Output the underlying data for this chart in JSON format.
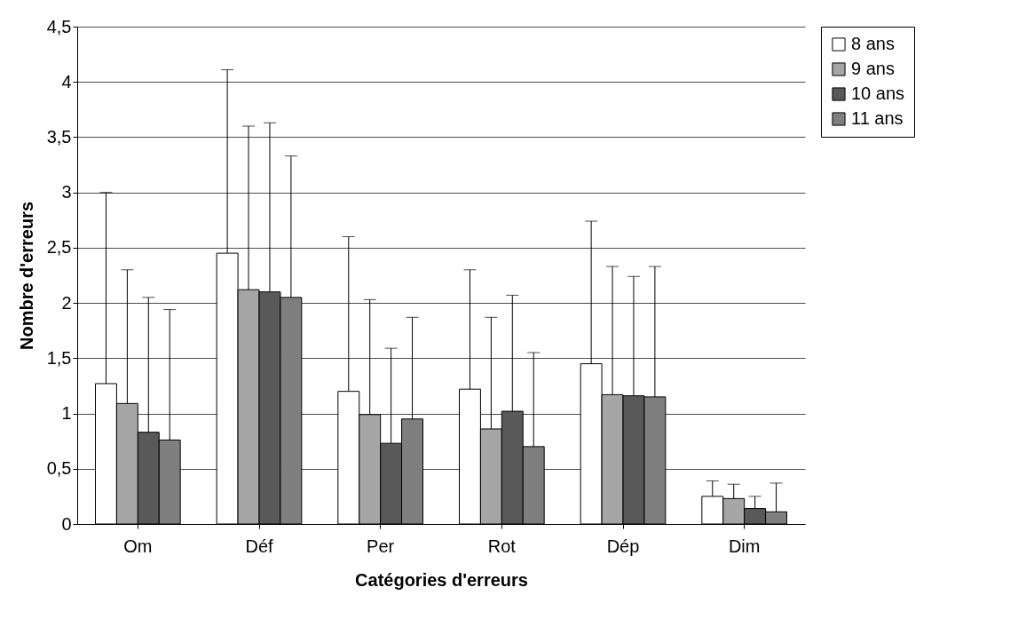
{
  "chart_data": {
    "type": "bar",
    "xlabel": "Catégories d'erreurs",
    "ylabel": "Nombre d'erreurs",
    "categories": [
      "Om",
      "Déf",
      "Per",
      "Rot",
      "Dép",
      "Dim"
    ],
    "series": [
      {
        "name": "8 ans",
        "color": "#ffffff",
        "values": [
          1.27,
          2.45,
          1.2,
          1.22,
          1.45,
          0.25
        ],
        "errors": [
          [
            1.27,
            3.0
          ],
          [
            2.45,
            4.11
          ],
          [
            1.2,
            2.6
          ],
          [
            1.22,
            2.3
          ],
          [
            1.45,
            2.74
          ],
          [
            0.25,
            0.39
          ]
        ]
      },
      {
        "name": "9 ans",
        "color": "#a6a6a6",
        "values": [
          1.09,
          2.12,
          0.99,
          0.86,
          1.17,
          0.23
        ],
        "errors": [
          [
            1.09,
            2.3
          ],
          [
            2.12,
            3.6
          ],
          [
            0.99,
            2.03
          ],
          [
            0.86,
            1.87
          ],
          [
            1.17,
            2.33
          ],
          [
            0.23,
            0.36
          ]
        ]
      },
      {
        "name": "10 ans",
        "color": "#595959",
        "values": [
          0.83,
          2.1,
          0.73,
          1.02,
          1.16,
          0.14
        ],
        "errors": [
          [
            0.83,
            2.05
          ],
          [
            2.1,
            3.63
          ],
          [
            0.73,
            1.59
          ],
          [
            1.02,
            2.07
          ],
          [
            1.16,
            2.24
          ],
          [
            0.14,
            0.25
          ]
        ]
      },
      {
        "name": "11 ans",
        "color": "#7f7f7f",
        "values": [
          0.76,
          2.05,
          0.95,
          0.7,
          1.15,
          0.11
        ],
        "errors": [
          [
            0.76,
            1.94
          ],
          [
            2.05,
            3.33
          ],
          [
            0.95,
            1.87
          ],
          [
            0.7,
            1.55
          ],
          [
            1.15,
            2.33
          ],
          [
            0.11,
            0.37
          ]
        ]
      }
    ],
    "ylim": [
      0,
      4.5
    ],
    "yticks": [
      0,
      {
        "value": 0.5,
        "label": "0,5"
      },
      1,
      {
        "value": 1.5,
        "label": "1,5"
      },
      2,
      {
        "value": 2.5,
        "label": "2,5"
      },
      3,
      {
        "value": 3.5,
        "label": "3,5"
      },
      4,
      {
        "value": 4.5,
        "label": "4,5"
      }
    ],
    "grid": "y",
    "legend": "right"
  }
}
